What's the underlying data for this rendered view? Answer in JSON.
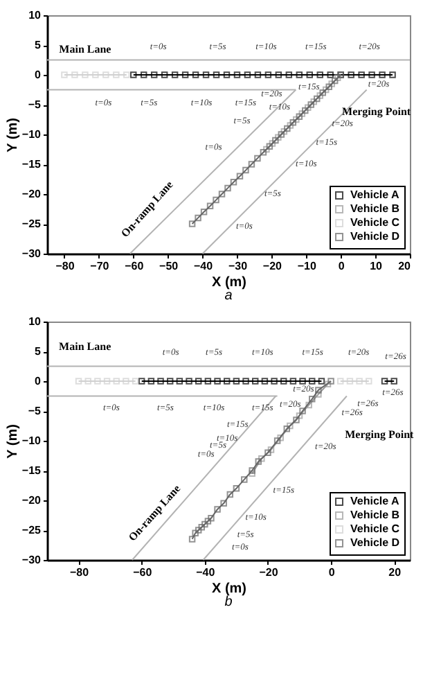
{
  "chart_data": [
    {
      "type": "line",
      "title": "a",
      "xlabel": "X (m)",
      "ylabel": "Y (m)",
      "xlim": [
        -85,
        20
      ],
      "ylim": [
        -30,
        10
      ],
      "xticks": [
        -80,
        -70,
        -60,
        -50,
        -40,
        -30,
        -20,
        -10,
        0,
        10,
        20
      ],
      "yticks": [
        -30,
        -25,
        -20,
        -15,
        -10,
        -5,
        0,
        5,
        10
      ],
      "grid": false,
      "legend": "bottom right",
      "marker": "square",
      "line_style": "solid",
      "series": [
        {
          "color": "#b3b3b3",
          "marker": "none",
          "x": [
            -85,
            20
          ],
          "values": [
            2.5,
            2.5
          ]
        },
        {
          "color": "#b3b3b3",
          "marker": "none",
          "x": [
            -85,
            -13
          ],
          "values": [
            -2.5,
            -2.5
          ]
        },
        {
          "color": "#b3b3b3",
          "marker": "none",
          "x": [
            -61,
            -13
          ],
          "values": [
            -30,
            -2.5
          ]
        },
        {
          "color": "#b3b3b3",
          "marker": "none",
          "x": [
            -40,
            7.5
          ],
          "values": [
            -30,
            -2.5
          ]
        },
        {
          "name": "Vehicle A",
          "color": "#000000",
          "x": [
            -60,
            -57,
            -54,
            -51,
            -48,
            -45,
            -42,
            -39,
            -36,
            -33,
            -30,
            -27,
            -24,
            -21,
            -18,
            -15,
            -12,
            -9,
            -6,
            -3,
            0,
            3,
            6,
            9,
            12,
            15
          ],
          "values": [
            0,
            0,
            0,
            0,
            0,
            0,
            0,
            0,
            0,
            0,
            0,
            0,
            0,
            0,
            0,
            0,
            0,
            0,
            0,
            0,
            0,
            0,
            0,
            0,
            0,
            0
          ]
        },
        {
          "name": "Vehicle B",
          "color": "#999999",
          "x": [
            -21.5,
            -19.8,
            -18.1,
            -16.4,
            -14.6,
            -12.9,
            -11.2,
            -9.5,
            -7.8,
            -6.0,
            -4.3,
            -2.6,
            -0.9
          ],
          "values": [
            -12.5,
            -11.5,
            -10.5,
            -9.5,
            -8.5,
            -7.5,
            -6.5,
            -5.5,
            -4.5,
            -3.5,
            -2.5,
            -1.5,
            -0.5
          ]
        },
        {
          "name": "Vehicle C",
          "color": "#d0d0d0",
          "x": [
            -80,
            -77,
            -74,
            -71,
            -68,
            -65,
            -62
          ],
          "values": [
            0,
            0,
            0,
            0,
            0,
            0,
            0
          ]
        },
        {
          "name": "Vehicle D",
          "color": "#666666",
          "x": [
            -43,
            -41.3,
            -39.6,
            -37.8,
            -36.1,
            -34.4,
            -32.7,
            -31,
            -29.2,
            -27.5,
            -25.8,
            -24.1,
            -22.4,
            -20.6,
            -18.9,
            -17.2,
            -15.5,
            -13.8,
            -12,
            -10.3,
            -8.6,
            -6.9,
            -5.2,
            -3.4,
            -1.7,
            0
          ],
          "values": [
            -25,
            -24,
            -23,
            -22,
            -21,
            -20,
            -19,
            -18,
            -17,
            -16,
            -15,
            -14,
            -13,
            -12,
            -11,
            -10,
            -9,
            -8,
            -7,
            -6,
            -5,
            -4,
            -3,
            -2,
            -1,
            0
          ]
        }
      ],
      "annotations": [
        "Main Lane",
        "Merging Point",
        "On-ramp Lane",
        "t=0s",
        "t=5s",
        "t=10s",
        "t=15s",
        "t=20s",
        "t=0s",
        "t=5s",
        "t=10s",
        "t=15s",
        "t=20s",
        "t=20s",
        "t=15s",
        "t=10s",
        "t=20s",
        "t=5s",
        "t=15s",
        "t=0s",
        "t=10s",
        "t=5s",
        "t=0s"
      ]
    },
    {
      "type": "line",
      "title": "b",
      "xlabel": "X (m)",
      "ylabel": "Y (m)",
      "xlim": [
        -90,
        25
      ],
      "ylim": [
        -30,
        10
      ],
      "xticks": [
        -80,
        -60,
        -40,
        -20,
        0,
        20
      ],
      "yticks": [
        -30,
        -25,
        -20,
        -15,
        -10,
        -5,
        0,
        5,
        10
      ],
      "grid": false,
      "legend": "bottom right",
      "marker": "square",
      "line_style": "solid",
      "series": [
        {
          "color": "#b3b3b3",
          "marker": "none",
          "x": [
            -90,
            25
          ],
          "values": [
            2.5,
            2.5
          ]
        },
        {
          "color": "#b3b3b3",
          "marker": "none",
          "x": [
            -90,
            -17
          ],
          "values": [
            -2.5,
            -2.5
          ]
        },
        {
          "color": "#b3b3b3",
          "marker": "none",
          "x": [
            -63,
            -17.5
          ],
          "values": [
            -30,
            -2.5
          ]
        },
        {
          "color": "#b3b3b3",
          "marker": "none",
          "x": [
            -40.5,
            5
          ],
          "values": [
            -30,
            -2.5
          ]
        },
        {
          "name": "Vehicle A",
          "color": "#000000",
          "x": [
            -60,
            -57,
            -54,
            -51,
            -48,
            -45,
            -42,
            -39,
            -36,
            -33,
            -30,
            -27,
            -24,
            -21,
            -18,
            -15,
            -12,
            -9,
            -6,
            -3,
            8,
            17,
            20
          ],
          "values": [
            0,
            0,
            0,
            0,
            0,
            0,
            0,
            0,
            0,
            0,
            0,
            0,
            0,
            0,
            0,
            0,
            0,
            0,
            0,
            0,
            null,
            0,
            0
          ]
        },
        {
          "name": "Vehicle B",
          "color": "#999999",
          "x": [
            -25,
            -22,
            -19,
            -16,
            -13,
            -10,
            -7,
            -4,
            -1
          ],
          "values": [
            -15.5,
            -13,
            -11.5,
            -9.5,
            -7.5,
            -5.8,
            -4,
            -2.2,
            -0.5
          ]
        },
        {
          "name": "Vehicle C",
          "color": "#d0d0d0",
          "x": [
            -80,
            -77,
            -74,
            -71,
            -68,
            -65,
            -62,
            -30,
            3,
            6,
            9,
            12
          ],
          "values": [
            0,
            0,
            0,
            0,
            0,
            0,
            0,
            null,
            0,
            0,
            0,
            0
          ]
        },
        {
          "name": "Vehicle D",
          "color": "#666666",
          "x": [
            -44,
            -43,
            -42,
            -41,
            -40,
            -39,
            -38,
            -36,
            -34,
            -32,
            -30,
            -27.5,
            -25,
            -23,
            -20,
            -17,
            -14,
            -11,
            -9,
            -6,
            -4,
            0
          ],
          "values": [
            -26.5,
            -25.5,
            -25,
            -24.5,
            -24,
            -23.5,
            -23,
            -21.5,
            -20.5,
            -19,
            -18,
            -16.5,
            -15,
            -13.5,
            -12,
            -10,
            -8,
            -6.5,
            -5,
            -3,
            -1.5,
            0
          ]
        }
      ],
      "annotations": [
        "Main Lane",
        "Merging Point",
        "On-ramp Lane",
        "t=0s",
        "t=5s",
        "t=10s",
        "t=15s",
        "t=20s",
        "t=26s",
        "t=0s",
        "t=5s",
        "t=10s",
        "t=15s",
        "t=20s",
        "t=26s",
        "t=26s",
        "t=20s",
        "t=26s",
        "t=15s",
        "t=20s",
        "t=10s",
        "t=5s",
        "t=0s",
        "t=15s",
        "t=10s",
        "t=5s",
        "t=0s"
      ]
    }
  ]
}
